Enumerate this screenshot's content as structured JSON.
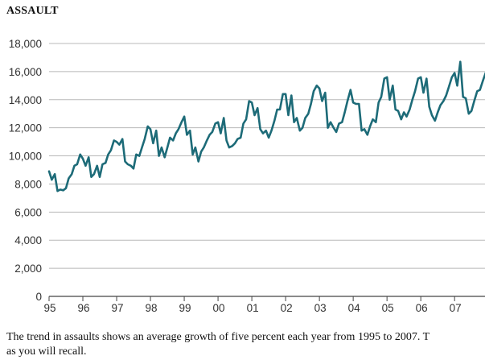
{
  "header": {
    "title": "ASSAULT"
  },
  "caption": {
    "line1": "The trend in assaults shows an average growth of five percent each year from 1995 to 2007. T",
    "line2": "as you will recall."
  },
  "chart_data": {
    "type": "line",
    "title": "ASSAULT",
    "xlabel": "",
    "ylabel": "",
    "ylim": [
      0,
      18000
    ],
    "yticks": [
      0,
      2000,
      4000,
      6000,
      8000,
      10000,
      12000,
      14000,
      16000,
      18000
    ],
    "ytick_labels": [
      "0",
      "2,000",
      "4,000",
      "6,000",
      "8,000",
      "10,000",
      "12,000",
      "14,000",
      "16,000",
      "18,000"
    ],
    "xlim": [
      1995.0,
      2007.9
    ],
    "xticks": [
      1995,
      1996,
      1997,
      1998,
      1999,
      2000,
      2001,
      2002,
      2003,
      2004,
      2005,
      2006,
      2007
    ],
    "xtick_labels": [
      "95",
      "96",
      "97",
      "98",
      "99",
      "00",
      "01",
      "02",
      "03",
      "04",
      "05",
      "06",
      "07"
    ],
    "grid": "horizontal",
    "line_color": "#1d6b78",
    "series": [
      {
        "x": [
          1995.0,
          1995.08,
          1995.17,
          1995.25,
          1995.33,
          1995.42,
          1995.5,
          1995.58,
          1995.67,
          1995.75,
          1995.83,
          1995.92,
          1996.0,
          1996.08,
          1996.17,
          1996.25,
          1996.33,
          1996.42,
          1996.5,
          1996.58,
          1996.67,
          1996.75,
          1996.83,
          1996.92,
          1997.0,
          1997.08,
          1997.17,
          1997.25,
          1997.33,
          1997.42,
          1997.5,
          1997.58,
          1997.67,
          1997.75,
          1997.83,
          1997.92,
          1998.0,
          1998.08,
          1998.17,
          1998.25,
          1998.33,
          1998.42,
          1998.5,
          1998.58,
          1998.67,
          1998.75,
          1998.83,
          1998.92,
          1999.0,
          1999.08,
          1999.17,
          1999.25,
          1999.33,
          1999.42,
          1999.5,
          1999.58,
          1999.67,
          1999.75,
          1999.83,
          1999.92,
          2000.0,
          2000.08,
          2000.17,
          2000.25,
          2000.33,
          2000.42,
          2000.5,
          2000.58,
          2000.67,
          2000.75,
          2000.83,
          2000.92,
          2001.0,
          2001.08,
          2001.17,
          2001.25,
          2001.33,
          2001.42,
          2001.5,
          2001.58,
          2001.67,
          2001.75,
          2001.83,
          2001.92,
          2002.0,
          2002.08,
          2002.17,
          2002.25,
          2002.33,
          2002.42,
          2002.5,
          2002.58,
          2002.67,
          2002.75,
          2002.83,
          2002.92,
          2003.0,
          2003.08,
          2003.17,
          2003.25,
          2003.33,
          2003.42,
          2003.5,
          2003.58,
          2003.67,
          2003.75,
          2003.83,
          2003.92,
          2004.0,
          2004.08,
          2004.17,
          2004.25,
          2004.33,
          2004.42,
          2004.5,
          2004.58,
          2004.67,
          2004.75,
          2004.83,
          2004.92,
          2005.0,
          2005.08,
          2005.17,
          2005.25,
          2005.33,
          2005.42,
          2005.5,
          2005.58,
          2005.67,
          2005.75,
          2005.83,
          2005.92,
          2006.0,
          2006.08,
          2006.17,
          2006.25,
          2006.33,
          2006.42,
          2006.5,
          2006.58,
          2006.67,
          2006.75,
          2006.83,
          2006.92,
          2007.0,
          2007.08,
          2007.17,
          2007.25,
          2007.33,
          2007.42,
          2007.5,
          2007.58,
          2007.67,
          2007.75,
          2007.83,
          2007.92
        ],
        "values": [
          8900,
          8300,
          8700,
          7500,
          7600,
          7550,
          7700,
          8400,
          8700,
          9300,
          9400,
          10100,
          9800,
          9300,
          9900,
          8500,
          8700,
          9300,
          8500,
          9400,
          9500,
          10100,
          10400,
          11100,
          11000,
          10800,
          11200,
          9600,
          9400,
          9300,
          9100,
          10100,
          10000,
          10600,
          11200,
          12100,
          11900,
          10900,
          11800,
          10000,
          10600,
          9900,
          10600,
          11300,
          11100,
          11600,
          11900,
          12400,
          12800,
          11500,
          11800,
          10100,
          10600,
          9600,
          10300,
          10600,
          11100,
          11500,
          11700,
          12300,
          12400,
          11600,
          12700,
          11100,
          10600,
          10700,
          10900,
          11200,
          11300,
          12300,
          12600,
          13900,
          13800,
          12900,
          13400,
          11900,
          11600,
          11800,
          11300,
          11800,
          12500,
          13300,
          13300,
          14400,
          14400,
          12900,
          14300,
          12400,
          12700,
          11800,
          12000,
          12700,
          13000,
          13700,
          14600,
          15000,
          14800,
          13900,
          14500,
          12000,
          12400,
          12000,
          11700,
          12300,
          12400,
          13100,
          13900,
          14700,
          13800,
          13700,
          13700,
          11800,
          11900,
          11500,
          12100,
          12600,
          12400,
          13800,
          14200,
          15500,
          15600,
          14000,
          15000,
          13300,
          13200,
          12600,
          13100,
          12800,
          13300,
          14000,
          14600,
          15500,
          15600,
          14500,
          15500,
          13500,
          12900,
          12500,
          13100,
          13600,
          13900,
          14300,
          14900,
          15600,
          15900,
          15000,
          16700,
          14200,
          14100,
          13000,
          13200,
          13900,
          14600,
          14700,
          15300,
          15900
        ]
      }
    ]
  }
}
